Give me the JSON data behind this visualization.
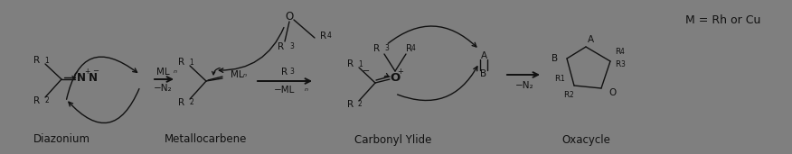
{
  "background_color": "#7f7f7f",
  "text_color": "#111111",
  "fig_width": 8.76,
  "fig_height": 1.71,
  "dpi": 100,
  "labels": {
    "diazonium": "Diazonium",
    "metallocarbene": "Metallocarbene",
    "carbonyl_ylide": "Carbonyl Ylide",
    "oxacycle": "Oxacycle",
    "m_eq": "M = Rh or Cu"
  },
  "fs": 7.5,
  "fl": 8.5
}
